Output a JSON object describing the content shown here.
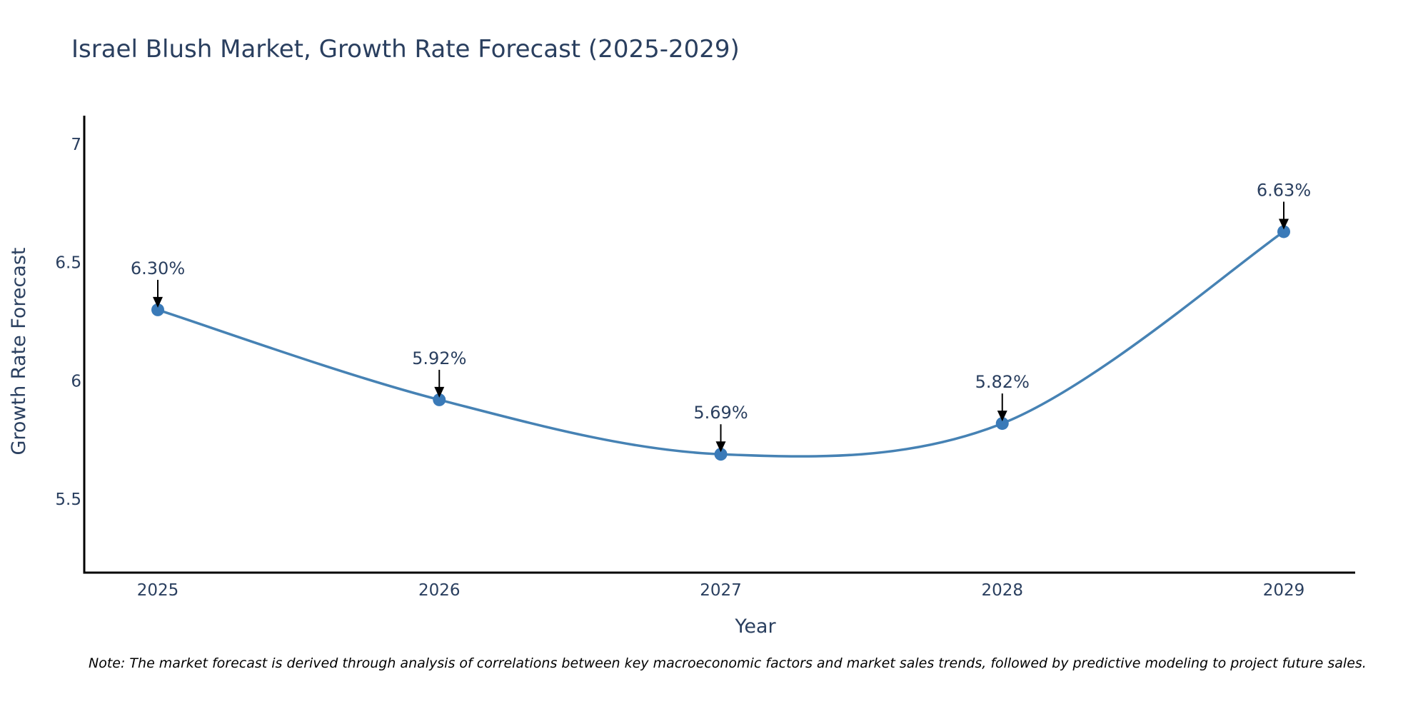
{
  "chart_data": {
    "type": "line",
    "title": "Israel Blush Market, Growth Rate Forecast (2025-2029)",
    "xlabel": "Year",
    "ylabel": "Growth Rate Forecast",
    "categories": [
      "2025",
      "2026",
      "2027",
      "2028",
      "2029"
    ],
    "series": [
      {
        "name": "Growth Rate Forecast",
        "values": [
          6.3,
          5.92,
          5.69,
          5.82,
          6.63
        ],
        "labels": [
          "6.30%",
          "5.92%",
          "5.69%",
          "5.82%",
          "6.63%"
        ]
      }
    ],
    "ylim": [
      5.19,
      7.12
    ],
    "yticks": [
      5.5,
      6,
      6.5,
      7
    ],
    "ytick_labels": [
      "5.5",
      "6",
      "6.5",
      "7"
    ],
    "grid": false,
    "line_shape": "spline",
    "line_color": "#4682b4",
    "marker_color": "#3a7ab8",
    "text_color": "#2a3f5f"
  },
  "note": "Note: The market forecast is derived through analysis of correlations between key macroeconomic factors and market sales trends, followed by predictive modeling to project future sales."
}
